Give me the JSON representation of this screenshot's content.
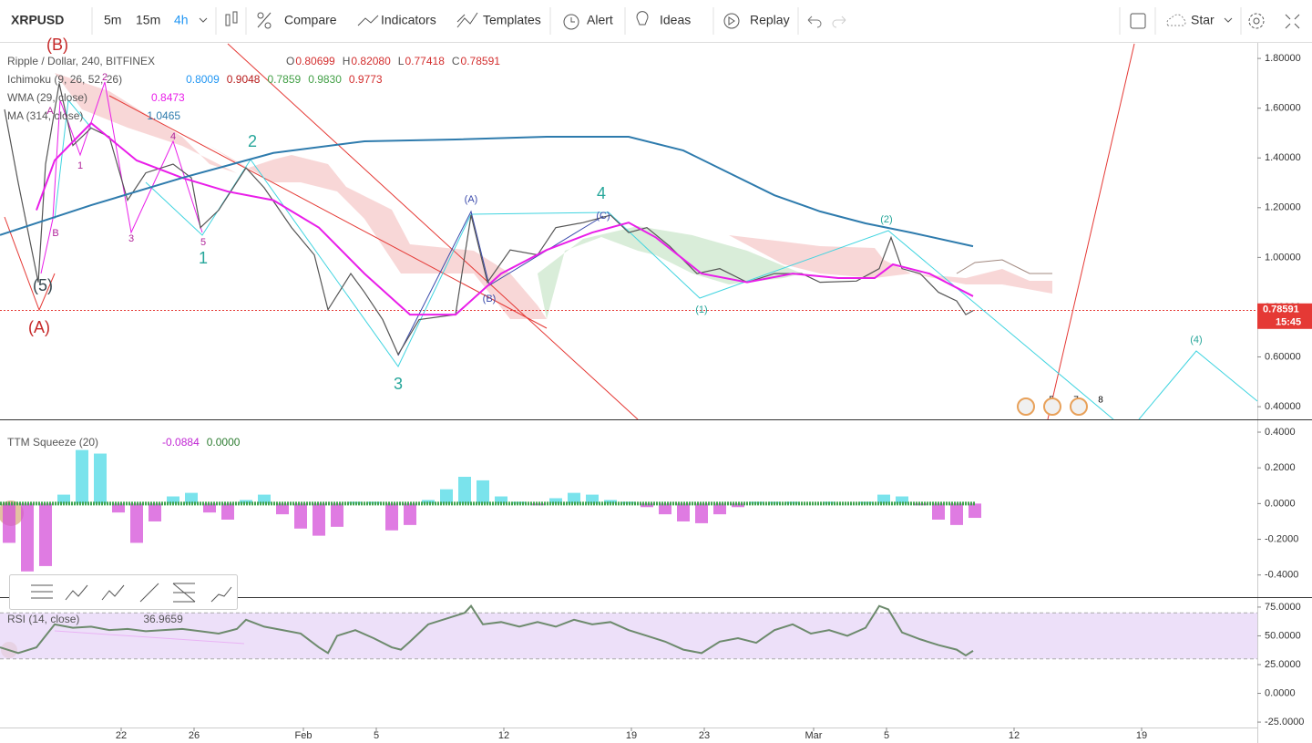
{
  "toolbar": {
    "symbol": "XRPUSD",
    "intervals": [
      "5m",
      "15m",
      "4h"
    ],
    "buttons": [
      "Compare",
      "Indicators",
      "Templates",
      "Alert",
      "Ideas",
      "Replay"
    ],
    "star": "Star"
  },
  "chart_data": [
    {
      "type": "line",
      "xlim": [
        15.35,
        84.35
      ],
      "ylim": [
        0.349,
        1.859
      ],
      "yticks": [
        {
          "value": 1.8,
          "label": "1.80000"
        },
        {
          "value": 1.6,
          "label": "1.60000"
        },
        {
          "value": 1.4,
          "label": "1.40000"
        },
        {
          "value": 1.2,
          "label": "1.20000"
        },
        {
          "value": 1,
          "label": "1.00000"
        },
        {
          "value": 0.8,
          "label": "0.80000"
        },
        {
          "value": 0.6,
          "label": "0.60000"
        },
        {
          "value": 0.4,
          "label": "0.40000"
        }
      ],
      "legend": [
        {
          "name": "Ripple / Dollar, 240, BITFINEX",
          "readout": [
            "O",
            0.80699,
            "H",
            {
              "value": 0.8208,
              "label": "0.82080"
            },
            "L",
            0.77418,
            "C",
            0.78591
          ],
          "colors": [
            "#555",
            "#d32f2f",
            "#555",
            "#d32f2f",
            "#555",
            "#d32f2f",
            "#555",
            "#d32f2f"
          ]
        },
        {
          "name": "Ichimoku (9, 26, 52, 26)",
          "readout": [
            0.8009,
            0.9048,
            0.7859,
            {
              "value": 0.983,
              "label": "0.9830"
            },
            0.9773
          ],
          "colors": [
            "#2196f3",
            "#b71c1c",
            "#43a047",
            "#43a047",
            "#d32f2f"
          ]
        },
        {
          "name": "WMA (29, close)",
          "readout": [
            0.8473
          ],
          "colors": [
            "#e91ee9"
          ]
        },
        {
          "name": "MA (314, close)",
          "readout": [
            1.0465
          ],
          "colors": [
            "#2e7bad"
          ]
        }
      ],
      "series": [
        {
          "color": "#555555",
          "x": [
            15.6,
            16.35,
            17.45,
            17.85,
            18.6,
            19.35,
            20.35,
            21.35,
            22.35,
            23.35,
            24.85,
            25.85,
            26.35,
            27.35,
            28.85,
            29.85,
            31.35,
            32.6,
            33.35,
            34.6,
            35.35,
            36.35,
            37.2,
            38.35,
            40.35,
            41.2,
            42.1,
            43.35,
            44.85,
            45.85,
            47.35,
            48.85,
            49.85,
            50.85,
            52.1,
            53.6,
            54.85,
            56.35,
            57.85,
            59.35,
            60.35,
            62.35,
            63.6,
            64.25,
            64.85,
            65.85,
            66.85,
            67.85,
            68.35,
            68.75
          ],
          "values": [
            1.595,
            1.3,
            0.9,
            1.375,
            1.7,
            1.45,
            1.52,
            1.485,
            1.23,
            1.34,
            1.375,
            1.32,
            1.12,
            1.19,
            1.36,
            1.28,
            1.12,
            1.01,
            0.79,
            0.935,
            0.86,
            0.75,
            0.61,
            0.75,
            0.77,
            1.17,
            0.9,
            1.03,
            1.01,
            1.12,
            1.14,
            1.17,
            1.1,
            1.12,
            1.045,
            0.935,
            0.955,
            0.9,
            0.935,
            0.935,
            0.9,
            0.905,
            0.955,
            1.08,
            0.955,
            0.935,
            0.86,
            0.825,
            0.77,
            0.786
          ]
        },
        {
          "color": "#e91ee9",
          "x": [
            17.35,
            18.35,
            20.35,
            22.85,
            25.35,
            27.85,
            30.35,
            32.85,
            35.35,
            37.85,
            40.35,
            42.85,
            45.35,
            47.85,
            49.85,
            51.35,
            53.85,
            56.35,
            58.85,
            61.35,
            63.35,
            64.35,
            66.35,
            68.75
          ],
          "values": [
            1.19,
            1.39,
            1.54,
            1.39,
            1.32,
            1.265,
            1.23,
            1.12,
            0.935,
            0.77,
            0.77,
            0.935,
            1.03,
            1.1,
            1.14,
            1.08,
            0.935,
            0.9,
            0.935,
            0.917,
            0.917,
            0.972,
            0.935,
            0.844
          ]
        },
        {
          "color": "#2e7bad",
          "x": [
            15.35,
            20.35,
            25.35,
            30.35,
            35.35,
            40.35,
            45.35,
            49.85,
            52.85,
            55.35,
            57.85,
            60.35,
            62.85,
            65.35,
            68.75
          ],
          "values": [
            1.09,
            1.21,
            1.32,
            1.42,
            1.467,
            1.474,
            1.485,
            1.485,
            1.43,
            1.34,
            1.25,
            1.185,
            1.137,
            1.1,
            1.045
          ]
        }
      ],
      "last_price": 0.78591,
      "countdown": "15:45",
      "wave_labels": [
        "(B)",
        "(5)",
        "(A)",
        "1",
        "2",
        "3",
        "4",
        "1",
        "2",
        "3",
        "4",
        "5",
        "A",
        "B",
        "(A)",
        "(B)",
        "(C)",
        "(1)",
        "(2)",
        "(4)"
      ],
      "event_badges": [
        "5",
        "7",
        "8"
      ]
    },
    {
      "type": "bar",
      "xlim": [
        15.35,
        84.35
      ],
      "ylim": [
        -0.524,
        0.441
      ],
      "yticks": [
        {
          "value": 0.4,
          "label": "0.4000"
        },
        {
          "value": 0.2,
          "label": "0.2000"
        },
        {
          "value": 0,
          "label": "0.0000"
        },
        {
          "value": -0.2,
          "label": "-0.2000"
        },
        {
          "value": -0.4,
          "label": "-0.4000"
        }
      ],
      "legend": [
        {
          "name": "TTM Squeeze (20)",
          "readout": [
            -0.0884,
            {
              "value": 0,
              "label": "0.0000"
            }
          ],
          "colors": [
            "#c026d3",
            "#2e7d32"
          ]
        }
      ],
      "color_positive": "#4dd9e6",
      "color_negative": "#d44fd8",
      "x": [
        15.85,
        16.85,
        17.85,
        18.85,
        19.85,
        20.85,
        21.85,
        22.85,
        23.85,
        24.85,
        25.85,
        26.85,
        27.85,
        28.85,
        29.85,
        30.85,
        31.85,
        32.85,
        33.85,
        34.85,
        35.85,
        36.85,
        37.85,
        38.85,
        39.85,
        40.85,
        41.85,
        42.85,
        43.85,
        44.85,
        45.85,
        46.85,
        47.85,
        48.85,
        49.85,
        50.85,
        51.85,
        52.85,
        53.85,
        54.85,
        55.85,
        56.85,
        57.85,
        58.85,
        59.85,
        60.85,
        61.85,
        62.85,
        63.85,
        64.85,
        65.85,
        66.85,
        67.85,
        68.85
      ],
      "values": [
        -0.22,
        -0.38,
        -0.35,
        0.05,
        0.3,
        0.28,
        -0.05,
        -0.22,
        -0.1,
        0.04,
        0.06,
        -0.05,
        -0.09,
        0.02,
        0.05,
        -0.06,
        -0.14,
        -0.18,
        -0.13,
        0.01,
        0.01,
        -0.15,
        -0.12,
        0.02,
        0.08,
        0.15,
        0.13,
        0.04,
        0.01,
        -0.01,
        0.03,
        0.06,
        0.05,
        0.02,
        0.01,
        -0.02,
        -0.06,
        -0.1,
        -0.11,
        -0.06,
        -0.02,
        0.01,
        0.01,
        0.01,
        0,
        0.01,
        0,
        0.01,
        0.05,
        0.04,
        -0.01,
        -0.09,
        -0.12,
        -0.08
      ]
    },
    {
      "type": "line",
      "xlim": [
        15.35,
        84.35
      ],
      "ylim": [
        -29.7,
        79.7
      ],
      "band": [
        30,
        70
      ],
      "yticks": [
        {
          "value": 75,
          "label": "75.0000"
        },
        {
          "value": 50,
          "label": "50.0000"
        },
        {
          "value": 25,
          "label": "25.0000"
        },
        {
          "value": 0,
          "label": "0.0000"
        },
        {
          "value": -25,
          "label": "-25.0000"
        }
      ],
      "xticks": [
        {
          "value": 22,
          "label": "22"
        },
        {
          "value": 26,
          "label": "26"
        },
        {
          "value": 32,
          "label": "Feb"
        },
        {
          "value": 36,
          "label": "5"
        },
        {
          "value": 43,
          "label": "12"
        },
        {
          "value": 50,
          "label": "19"
        },
        {
          "value": 54,
          "label": "23"
        },
        {
          "value": 60,
          "label": "Mar"
        },
        {
          "value": 64,
          "label": "5"
        },
        {
          "value": 71,
          "label": "12"
        },
        {
          "value": 78,
          "label": "19"
        }
      ],
      "legend": [
        {
          "name": "RSI (14, close)",
          "readout": [
            36.9659
          ],
          "colors": [
            "#555"
          ]
        }
      ],
      "series": [
        {
          "color": "#6d8a6d",
          "x": [
            15.35,
            16.35,
            17.35,
            18.35,
            19.35,
            20.35,
            21.35,
            22.35,
            23.35,
            24.35,
            25.35,
            26.35,
            27.35,
            28.35,
            28.85,
            29.85,
            30.85,
            31.85,
            32.85,
            33.35,
            33.85,
            34.85,
            35.85,
            36.85,
            37.35,
            37.85,
            38.85,
            39.85,
            40.85,
            41.2,
            41.85,
            42.85,
            43.85,
            44.85,
            45.85,
            46.85,
            47.85,
            48.85,
            49.85,
            50.85,
            51.85,
            52.85,
            53.85,
            54.85,
            55.85,
            56.85,
            57.85,
            58.85,
            59.85,
            60.85,
            61.85,
            62.85,
            63.6,
            64.1,
            64.85,
            65.85,
            66.85,
            67.85,
            68.35,
            68.75
          ],
          "values": [
            40,
            35,
            40,
            60,
            57,
            58,
            55,
            56,
            54,
            55,
            56,
            54,
            52,
            56,
            64,
            58,
            55,
            52,
            40,
            35,
            50,
            55,
            48,
            40,
            38,
            45,
            60,
            65,
            70,
            76,
            60,
            62,
            58,
            62,
            58,
            64,
            60,
            62,
            55,
            50,
            45,
            38,
            35,
            45,
            48,
            44,
            55,
            60,
            52,
            55,
            50,
            57,
            76,
            73,
            53,
            47,
            42,
            38,
            33,
            37
          ]
        }
      ]
    }
  ]
}
